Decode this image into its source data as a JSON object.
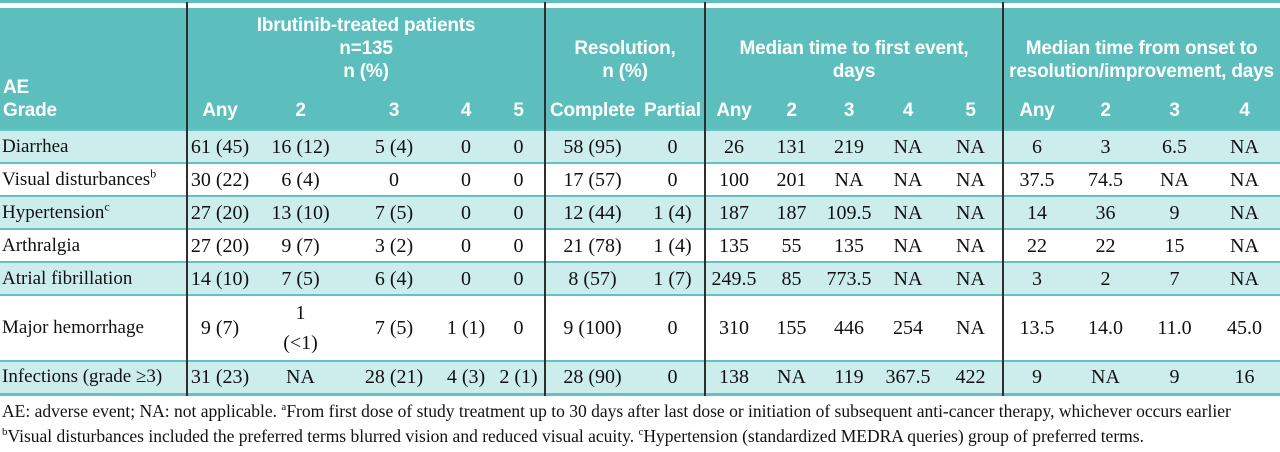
{
  "colors": {
    "header_teal": "#5dbebe",
    "row_teal": "#cdeded",
    "separator_line": "#63c2c2",
    "group_divider": "#2e2e2e"
  },
  "header": {
    "corner_lines": [
      "AE",
      "Grade"
    ],
    "groups": [
      {
        "title_lines": [
          "Ibrutinib-treated patients",
          "n=135",
          "n (%)"
        ],
        "columns": [
          "Any",
          "2",
          "3",
          "4",
          "5"
        ]
      },
      {
        "title_lines": [
          "Resolution,",
          "n (%)"
        ],
        "columns": [
          "Complete",
          "Partial"
        ]
      },
      {
        "title_lines": [
          "Median time to first event,",
          "days"
        ],
        "columns": [
          "Any",
          "2",
          "3",
          "4",
          "5"
        ]
      },
      {
        "title_lines": [
          "Median time from onset to",
          "resolution/improvement, days"
        ],
        "columns": [
          "Any",
          "2",
          "3",
          "4"
        ]
      }
    ]
  },
  "rows": [
    {
      "label": "Diarrhea",
      "label_sup": "",
      "cells": [
        "61 (45)",
        "16 (12)",
        "5 (4)",
        "0",
        "0",
        "58 (95)",
        "0",
        "26",
        "131",
        "219",
        "NA",
        "NA",
        "6",
        "3",
        "6.5",
        "NA"
      ]
    },
    {
      "label": "Visual disturbances",
      "label_sup": "b",
      "cells": [
        "30 (22)",
        "6 (4)",
        "0",
        "0",
        "0",
        "17 (57)",
        "0",
        "100",
        "201",
        "NA",
        "NA",
        "NA",
        "37.5",
        "74.5",
        "NA",
        "NA"
      ]
    },
    {
      "label": "Hypertension",
      "label_sup": "c",
      "cells": [
        "27 (20)",
        "13 (10)",
        "7 (5)",
        "0",
        "0",
        "12 (44)",
        "1 (4)",
        "187",
        "187",
        "109.5",
        "NA",
        "NA",
        "14",
        "36",
        "9",
        "NA"
      ]
    },
    {
      "label": "Arthralgia",
      "label_sup": "",
      "cells": [
        "27 (20)",
        "9 (7)",
        "3 (2)",
        "0",
        "0",
        "21 (78)",
        "1 (4)",
        "135",
        "55",
        "135",
        "NA",
        "NA",
        "22",
        "22",
        "15",
        "NA"
      ]
    },
    {
      "label": "Atrial fibrillation",
      "label_sup": "",
      "cells": [
        "14 (10)",
        "7 (5)",
        "6 (4)",
        "0",
        "0",
        "8 (57)",
        "1 (7)",
        "249.5",
        "85",
        "773.5",
        "NA",
        "NA",
        "3",
        "2",
        "7",
        "NA"
      ]
    },
    {
      "label": "Major hemorrhage",
      "label_sup": "",
      "cells": [
        "9 (7)",
        "1\n(<1)",
        "7 (5)",
        "1 (1)",
        "0",
        "9 (100)",
        "0",
        "310",
        "155",
        "446",
        "254",
        "NA",
        "13.5",
        "14.0",
        "11.0",
        "45.0"
      ]
    },
    {
      "label": "Infections (grade ≥3)",
      "label_sup": "",
      "cells": [
        "31 (23)",
        "NA",
        "28 (21)",
        "4 (3)",
        "2 (1)",
        "28 (90)",
        "0",
        "138",
        "NA",
        "119",
        "367.5",
        "422",
        "9",
        "NA",
        "9",
        "16"
      ]
    }
  ],
  "footnotes": [
    [
      {
        "text": "AE: adverse event; NA: not applicable. "
      },
      {
        "sup": "a"
      },
      {
        "text": "From first dose of study treatment up to 30 days after last dose or initiation of subsequent anti-cancer therapy, whichever occurs earlier"
      }
    ],
    [
      {
        "sup": "b"
      },
      {
        "text": "Visual disturbances included the preferred terms blurred vision and reduced visual acuity. "
      },
      {
        "sup": "c"
      },
      {
        "text": "Hypertension (standardized MEDRA queries) group of preferred terms."
      }
    ]
  ]
}
